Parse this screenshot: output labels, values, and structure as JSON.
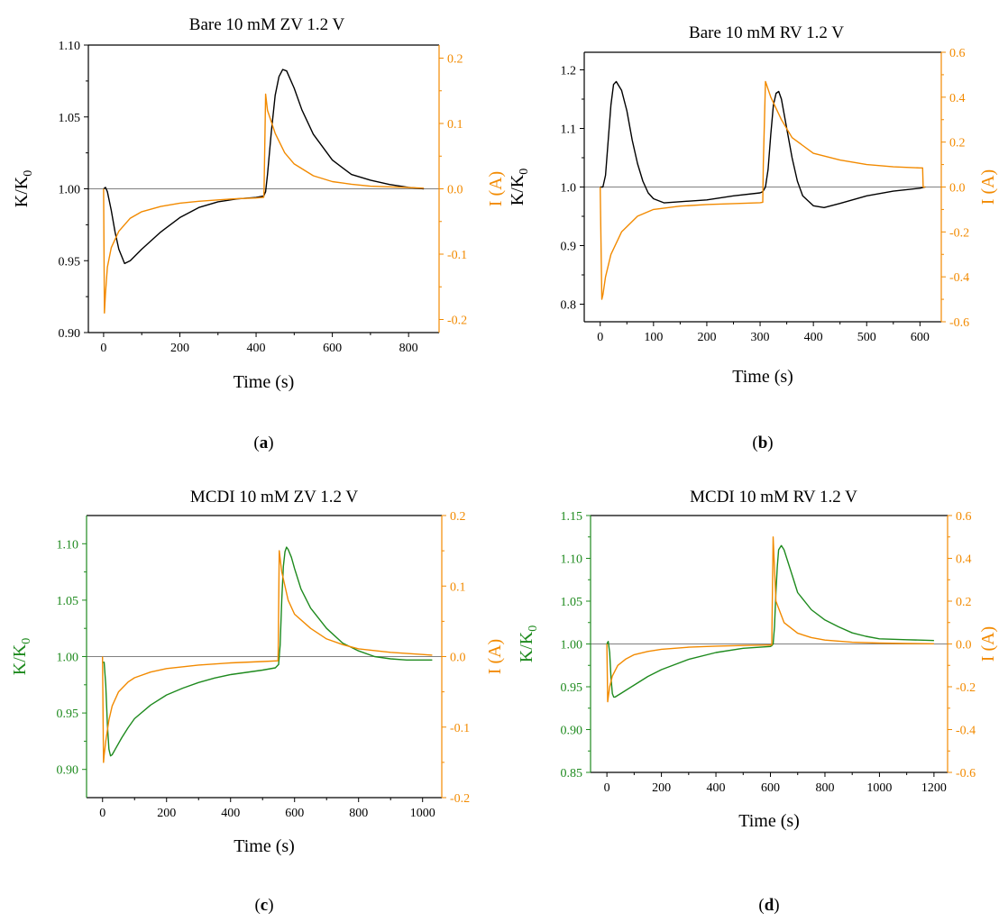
{
  "colors": {
    "black_series": "#000000",
    "green_series": "#1e8a1e",
    "orange_series": "#f28a00",
    "frame": "#000000",
    "zero_line": "#808080"
  },
  "chart_data": [
    {
      "type": "line",
      "panel": "a",
      "caption": {
        "open": "(",
        "letter": "a",
        "close": ")"
      },
      "title": "Bare   10 mM  ZV  1.2 V",
      "xlabel": "Time (s)",
      "ylabel": {
        "main": "K/K",
        "sub": "0"
      },
      "y2label": "I (A)",
      "xlim": [
        -40,
        880
      ],
      "xticks": [
        0,
        200,
        400,
        600,
        800
      ],
      "xtick_labels": [
        "0",
        "200",
        "400",
        "600",
        "800"
      ],
      "ylim": [
        0.9,
        1.1
      ],
      "yticks": [
        0.9,
        0.95,
        1.0,
        1.05,
        1.1
      ],
      "ytick_labels": [
        "0.90",
        "0.95",
        "1.00",
        "1.05",
        "1.10"
      ],
      "y2lim": [
        -0.22,
        0.22
      ],
      "y2ticks": [
        -0.2,
        -0.1,
        0.0,
        0.1,
        0.2
      ],
      "y2tick_labels": [
        "-0.2",
        "-0.1",
        "0.0",
        "0.1",
        "0.2"
      ],
      "left_axis_color": "#000000",
      "zero_line_y": 1.0,
      "series": [
        {
          "axis": "left",
          "color": "#000000",
          "x": [
            0,
            5,
            10,
            20,
            30,
            40,
            55,
            70,
            100,
            150,
            200,
            250,
            300,
            350,
            400,
            420,
            425,
            430,
            440,
            450,
            460,
            470,
            480,
            500,
            520,
            550,
            600,
            650,
            700,
            750,
            800,
            840
          ],
          "y": [
            1.0,
            1.001,
            0.998,
            0.985,
            0.97,
            0.958,
            0.948,
            0.95,
            0.958,
            0.97,
            0.98,
            0.987,
            0.991,
            0.993,
            0.994,
            0.995,
            0.998,
            1.01,
            1.04,
            1.065,
            1.078,
            1.083,
            1.082,
            1.07,
            1.055,
            1.038,
            1.02,
            1.01,
            1.006,
            1.003,
            1.001,
            1.0
          ]
        },
        {
          "axis": "right",
          "color": "#f28a00",
          "x": [
            0,
            2,
            5,
            10,
            20,
            40,
            70,
            100,
            150,
            200,
            250,
            300,
            350,
            400,
            420,
            421,
            425,
            430,
            450,
            475,
            500,
            550,
            600,
            650,
            700,
            750,
            800,
            840
          ],
          "y": [
            0.0,
            -0.19,
            -0.16,
            -0.12,
            -0.09,
            -0.065,
            -0.045,
            -0.035,
            -0.027,
            -0.022,
            -0.019,
            -0.017,
            -0.015,
            -0.014,
            -0.013,
            0.0,
            0.145,
            0.12,
            0.085,
            0.055,
            0.038,
            0.02,
            0.011,
            0.007,
            0.004,
            0.003,
            0.002,
            0.001
          ]
        }
      ]
    },
    {
      "type": "line",
      "panel": "b",
      "caption": {
        "open": "(",
        "letter": "b",
        "close": ")"
      },
      "title": "Bare  10 mM   RV  1.2 V",
      "xlabel": "Time (s)",
      "ylabel": {
        "main": "K/K",
        "sub": "0"
      },
      "y2label": "I (A)",
      "xlim": [
        -30,
        640
      ],
      "xticks": [
        0,
        100,
        200,
        300,
        400,
        500,
        600
      ],
      "xtick_labels": [
        "0",
        "100",
        "200",
        "300",
        "400",
        "500",
        "600"
      ],
      "ylim": [
        0.77,
        1.23
      ],
      "yticks": [
        0.8,
        0.9,
        1.0,
        1.1,
        1.2
      ],
      "ytick_labels": [
        "0.8",
        "0.9",
        "1.0",
        "1.1",
        "1.2"
      ],
      "y2lim": [
        -0.6,
        0.6
      ],
      "y2ticks": [
        -0.6,
        -0.4,
        -0.2,
        0.0,
        0.2,
        0.4,
        0.6
      ],
      "y2tick_labels": [
        "-0.6",
        "-0.4",
        "-0.2",
        "0.0",
        "0.2",
        "0.4",
        "0.6"
      ],
      "left_axis_color": "#000000",
      "zero_line_y": 1.0,
      "series": [
        {
          "axis": "left",
          "color": "#000000",
          "x": [
            0,
            5,
            10,
            15,
            20,
            25,
            30,
            40,
            50,
            60,
            70,
            80,
            90,
            100,
            120,
            150,
            200,
            250,
            300,
            305,
            310,
            315,
            320,
            325,
            330,
            335,
            340,
            350,
            360,
            370,
            380,
            400,
            420,
            450,
            500,
            550,
            600,
            610
          ],
          "y": [
            1.0,
            1.0,
            1.02,
            1.08,
            1.14,
            1.175,
            1.18,
            1.165,
            1.13,
            1.08,
            1.04,
            1.01,
            0.99,
            0.98,
            0.973,
            0.975,
            0.978,
            0.985,
            0.99,
            0.992,
            1.0,
            1.03,
            1.09,
            1.14,
            1.16,
            1.163,
            1.15,
            1.1,
            1.05,
            1.01,
            0.985,
            0.968,
            0.965,
            0.972,
            0.985,
            0.993,
            0.998,
            1.0
          ]
        },
        {
          "axis": "right",
          "color": "#f28a00",
          "x": [
            0,
            3,
            5,
            10,
            20,
            40,
            70,
            100,
            150,
            200,
            250,
            300,
            305,
            306,
            310,
            320,
            340,
            360,
            400,
            450,
            500,
            550,
            600,
            605,
            606,
            610
          ],
          "y": [
            0.0,
            -0.5,
            -0.48,
            -0.4,
            -0.3,
            -0.2,
            -0.13,
            -0.1,
            -0.085,
            -0.078,
            -0.074,
            -0.07,
            -0.068,
            0.1,
            0.47,
            0.4,
            0.3,
            0.22,
            0.15,
            0.12,
            0.1,
            0.09,
            0.085,
            0.085,
            0.0,
            0.0
          ]
        }
      ]
    },
    {
      "type": "line",
      "panel": "c",
      "caption": {
        "open": "(",
        "letter": "c",
        "close": ")"
      },
      "title": "MCDI   10 mM   ZV  1.2 V",
      "xlabel": "Time (s)",
      "ylabel": {
        "main": "K/K",
        "sub": "0"
      },
      "y2label": "I (A)",
      "xlim": [
        -50,
        1060
      ],
      "xticks": [
        0,
        200,
        400,
        600,
        800,
        1000
      ],
      "xtick_labels": [
        "0",
        "200",
        "400",
        "600",
        "800",
        "1000"
      ],
      "ylim": [
        0.875,
        1.125
      ],
      "yticks": [
        0.9,
        0.95,
        1.0,
        1.05,
        1.1
      ],
      "ytick_labels": [
        "0.90",
        "0.95",
        "1.00",
        "1.05",
        "1.10"
      ],
      "y2lim": [
        -0.2,
        0.2
      ],
      "y2ticks": [
        -0.2,
        -0.1,
        0.0,
        0.1,
        0.2
      ],
      "y2tick_labels": [
        "-0.2",
        "-0.1",
        "0.0",
        "0.1",
        "0.2"
      ],
      "left_axis_color": "#1e8a1e",
      "zero_line_y": 1.0,
      "series": [
        {
          "axis": "left",
          "color": "#1e8a1e",
          "x": [
            0,
            5,
            10,
            15,
            20,
            25,
            30,
            40,
            60,
            80,
            100,
            150,
            200,
            250,
            300,
            350,
            400,
            450,
            500,
            540,
            550,
            555,
            560,
            565,
            570,
            575,
            580,
            590,
            600,
            620,
            650,
            700,
            750,
            800,
            850,
            900,
            950,
            1000,
            1030
          ],
          "y": [
            0.995,
            0.995,
            0.975,
            0.94,
            0.918,
            0.912,
            0.913,
            0.918,
            0.928,
            0.937,
            0.945,
            0.957,
            0.966,
            0.972,
            0.977,
            0.981,
            0.984,
            0.986,
            0.988,
            0.99,
            0.993,
            1.01,
            1.05,
            1.08,
            1.093,
            1.097,
            1.095,
            1.088,
            1.078,
            1.06,
            1.043,
            1.025,
            1.012,
            1.005,
            1.0,
            0.998,
            0.997,
            0.997,
            0.997
          ]
        },
        {
          "axis": "right",
          "color": "#f28a00",
          "x": [
            0,
            3,
            5,
            10,
            20,
            30,
            50,
            80,
            100,
            150,
            200,
            300,
            400,
            500,
            548,
            549,
            552,
            560,
            580,
            600,
            650,
            700,
            750,
            800,
            900,
            1000,
            1030
          ],
          "y": [
            0.0,
            -0.15,
            -0.14,
            -0.12,
            -0.09,
            -0.07,
            -0.05,
            -0.036,
            -0.03,
            -0.022,
            -0.017,
            -0.012,
            -0.009,
            -0.007,
            -0.006,
            0.01,
            0.15,
            0.12,
            0.08,
            0.06,
            0.04,
            0.025,
            0.017,
            0.011,
            0.006,
            0.003,
            0.002
          ]
        }
      ]
    },
    {
      "type": "line",
      "panel": "d",
      "caption": {
        "open": "(",
        "letter": "d",
        "close": ")"
      },
      "title": "MCDI   10 mM   RV  1.2 V",
      "xlabel": "Time (s)",
      "ylabel": {
        "main": "K/K",
        "sub": "0"
      },
      "y2label": "I (A)",
      "xlim": [
        -60,
        1250
      ],
      "xticks": [
        0,
        200,
        400,
        600,
        800,
        1000,
        1200
      ],
      "xtick_labels": [
        "0",
        "200",
        "400",
        "600",
        "800",
        "1000",
        "1200"
      ],
      "ylim": [
        0.85,
        1.15
      ],
      "yticks": [
        0.85,
        0.9,
        0.95,
        1.0,
        1.05,
        1.1,
        1.15
      ],
      "ytick_labels": [
        "0.85",
        "0.90",
        "0.95",
        "1.00",
        "1.05",
        "1.10",
        "1.15"
      ],
      "y2lim": [
        -0.6,
        0.6
      ],
      "y2ticks": [
        -0.6,
        -0.4,
        -0.2,
        0.0,
        0.2,
        0.4,
        0.6
      ],
      "y2tick_labels": [
        "-0.6",
        "-0.4",
        "-0.2",
        "0.0",
        "0.2",
        "0.4",
        "0.6"
      ],
      "left_axis_color": "#1e8a1e",
      "zero_line_y": 1.0,
      "series": [
        {
          "axis": "left",
          "color": "#1e8a1e",
          "x": [
            0,
            5,
            10,
            15,
            20,
            25,
            30,
            50,
            100,
            150,
            200,
            300,
            400,
            500,
            600,
            605,
            610,
            615,
            620,
            625,
            630,
            640,
            650,
            680,
            700,
            750,
            800,
            850,
            900,
            950,
            1000,
            1100,
            1200
          ],
          "y": [
            1.0,
            1.003,
            0.99,
            0.96,
            0.942,
            0.938,
            0.938,
            0.942,
            0.952,
            0.962,
            0.97,
            0.982,
            0.99,
            0.995,
            0.997,
            0.998,
            1.0,
            1.02,
            1.06,
            1.09,
            1.11,
            1.115,
            1.11,
            1.08,
            1.06,
            1.04,
            1.028,
            1.02,
            1.013,
            1.009,
            1.006,
            1.005,
            1.004
          ]
        },
        {
          "axis": "right",
          "color": "#f28a00",
          "x": [
            0,
            3,
            5,
            10,
            20,
            40,
            70,
            100,
            150,
            200,
            300,
            400,
            500,
            600,
            605,
            606,
            610,
            620,
            650,
            700,
            750,
            800,
            900,
            1000,
            1100,
            1200
          ],
          "y": [
            0.0,
            -0.27,
            -0.25,
            -0.2,
            -0.15,
            -0.1,
            -0.07,
            -0.05,
            -0.035,
            -0.025,
            -0.015,
            -0.01,
            -0.007,
            -0.005,
            -0.005,
            0.1,
            0.5,
            0.2,
            0.1,
            0.05,
            0.03,
            0.018,
            0.008,
            0.004,
            0.002,
            0.001
          ]
        }
      ]
    }
  ]
}
